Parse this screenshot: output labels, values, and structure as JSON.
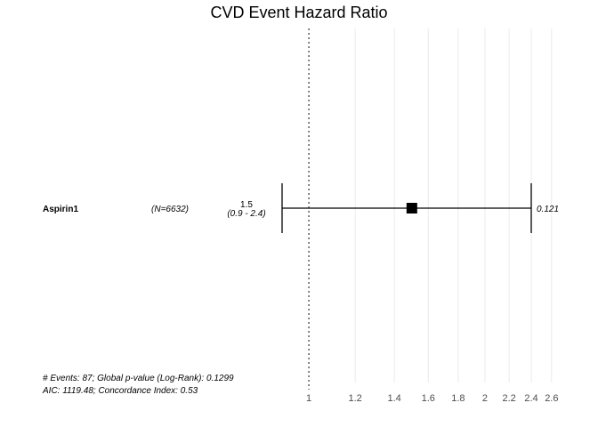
{
  "title": "CVD Event Hazard Ratio",
  "footer": {
    "line1": "# Events: 87; Global p-value (Log-Rank): 0.1299",
    "line2": "AIC: 1119.48; Concordance Index: 0.53"
  },
  "chart_data": {
    "type": "forest",
    "title": "CVD Event Hazard Ratio",
    "x_scale": "log",
    "xlim": [
      0.9,
      2.7
    ],
    "reference_line": 1,
    "ticks": [
      1,
      1.2,
      1.4,
      1.6,
      1.8,
      2,
      2.2,
      2.4,
      2.6
    ],
    "tick_labels": [
      "1",
      "1.2",
      "1.4",
      "1.6",
      "1.8",
      "2",
      "2.2",
      "2.4",
      "2.6"
    ],
    "grid": true,
    "rows": [
      {
        "variable": "Aspirin1",
        "n_label": "(N=6632)",
        "hr": 1.5,
        "ci_low": 0.9,
        "ci_high": 2.4,
        "hr_label": "1.5",
        "ci_label": "(0.9 - 2.4)",
        "p_label": "0.121"
      }
    ]
  }
}
